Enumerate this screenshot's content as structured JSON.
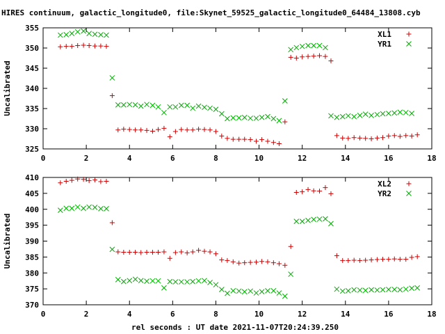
{
  "title": "HIRES continuum, galactic_longitude0, file:Skynet_59525_galactic_longitude0_64484_13808.cyb",
  "xlabel": "rel seconds : UT date 2021-11-07T20:24:39.250",
  "colors": {
    "red": "#cc0000",
    "green": "#00aa00",
    "axis": "#000000"
  },
  "chart_data": [
    {
      "type": "scatter",
      "ylabel": "Uncalibrated",
      "xlim": [
        0,
        18
      ],
      "ylim": [
        325,
        355
      ],
      "xticks": [
        0,
        2,
        4,
        6,
        8,
        10,
        12,
        14,
        16,
        18
      ],
      "yticks": [
        325,
        330,
        335,
        340,
        345,
        350,
        355
      ],
      "legend_position": "top-right",
      "series": [
        {
          "name": "XL1",
          "marker": "plus",
          "color": "#cc0000",
          "x": [
            0.8,
            1.07,
            1.33,
            1.6,
            1.87,
            2.13,
            2.4,
            2.67,
            2.93,
            3.2,
            3.47,
            3.73,
            4.0,
            4.27,
            4.53,
            4.8,
            5.07,
            5.33,
            5.6,
            5.87,
            6.13,
            6.4,
            6.67,
            6.93,
            7.2,
            7.47,
            7.73,
            8.0,
            8.27,
            8.53,
            8.8,
            9.07,
            9.33,
            9.6,
            9.87,
            10.13,
            10.4,
            10.67,
            10.93,
            11.2,
            11.47,
            11.73,
            12.0,
            12.27,
            12.53,
            12.8,
            13.07,
            13.33,
            13.6,
            13.87,
            14.13,
            14.4,
            14.67,
            14.93,
            15.2,
            15.47,
            15.73,
            16.0,
            16.27,
            16.53,
            16.8,
            17.07,
            17.33,
            17.6
          ],
          "y": [
            350.3,
            350.4,
            350.4,
            350.6,
            350.7,
            350.6,
            350.5,
            350.5,
            350.4,
            338.2,
            329.7,
            329.9,
            329.8,
            329.7,
            329.7,
            329.6,
            329.4,
            329.8,
            330.1,
            328.0,
            329.3,
            329.8,
            329.7,
            329.7,
            329.9,
            329.8,
            329.7,
            329.3,
            328.2,
            327.6,
            327.4,
            327.4,
            327.4,
            327.3,
            326.9,
            327.3,
            326.9,
            326.6,
            326.3,
            331.7,
            347.7,
            347.5,
            347.8,
            347.9,
            348.0,
            348.1,
            347.9,
            346.8,
            328.3,
            327.7,
            327.6,
            327.8,
            327.7,
            327.6,
            327.5,
            327.7,
            327.8,
            328.2,
            328.3,
            328.1,
            328.3,
            328.2,
            328.5,
            null
          ]
        },
        {
          "name": "YR1",
          "marker": "cross",
          "color": "#00aa00",
          "x": [
            0.8,
            1.07,
            1.33,
            1.6,
            1.87,
            2.13,
            2.4,
            2.67,
            2.93,
            3.2,
            3.47,
            3.73,
            4.0,
            4.27,
            4.53,
            4.8,
            5.07,
            5.33,
            5.6,
            5.87,
            6.13,
            6.4,
            6.67,
            6.93,
            7.2,
            7.47,
            7.73,
            8.0,
            8.27,
            8.53,
            8.8,
            9.07,
            9.33,
            9.6,
            9.87,
            10.13,
            10.4,
            10.67,
            10.93,
            11.2,
            11.47,
            11.73,
            12.0,
            12.27,
            12.53,
            12.8,
            13.07,
            13.33,
            13.6,
            13.87,
            14.13,
            14.4,
            14.67,
            14.93,
            15.2,
            15.47,
            15.73,
            16.0,
            16.27,
            16.53,
            16.8,
            17.07,
            17.33,
            17.6
          ],
          "y": [
            353.2,
            353.3,
            353.6,
            354.0,
            354.2,
            353.6,
            353.4,
            353.3,
            353.2,
            342.6,
            335.9,
            335.9,
            336.0,
            335.9,
            335.6,
            336.0,
            335.8,
            335.4,
            334.0,
            335.4,
            335.4,
            335.8,
            335.8,
            335.1,
            335.6,
            335.3,
            335.1,
            334.8,
            333.7,
            332.5,
            332.7,
            332.7,
            332.8,
            332.6,
            332.6,
            332.8,
            333.0,
            332.5,
            332.0,
            336.9,
            349.6,
            350.1,
            350.4,
            350.6,
            350.6,
            350.6,
            350.1,
            333.2,
            332.8,
            333.0,
            333.2,
            333.0,
            333.3,
            333.6,
            333.3,
            333.5,
            333.7,
            333.8,
            333.9,
            334.1,
            334.0,
            333.8,
            null,
            null
          ]
        }
      ]
    },
    {
      "type": "scatter",
      "ylabel": "Uncalibrated",
      "xlim": [
        0,
        18
      ],
      "ylim": [
        370,
        410
      ],
      "xticks": [
        0,
        2,
        4,
        6,
        8,
        10,
        12,
        14,
        16,
        18
      ],
      "yticks": [
        370,
        375,
        380,
        385,
        390,
        395,
        400,
        405,
        410
      ],
      "legend_position": "top-right",
      "series": [
        {
          "name": "XL2",
          "marker": "plus",
          "color": "#cc0000",
          "x": [
            0.8,
            1.07,
            1.33,
            1.6,
            1.87,
            2.13,
            2.4,
            2.67,
            2.93,
            3.2,
            3.47,
            3.73,
            4.0,
            4.27,
            4.53,
            4.8,
            5.07,
            5.33,
            5.6,
            5.87,
            6.13,
            6.4,
            6.67,
            6.93,
            7.2,
            7.47,
            7.73,
            8.0,
            8.27,
            8.53,
            8.8,
            9.07,
            9.33,
            9.6,
            9.87,
            10.13,
            10.4,
            10.67,
            10.93,
            11.2,
            11.47,
            11.73,
            12.0,
            12.27,
            12.53,
            12.8,
            13.07,
            13.33,
            13.6,
            13.87,
            14.13,
            14.4,
            14.67,
            14.93,
            15.2,
            15.47,
            15.73,
            16.0,
            16.27,
            16.53,
            16.8,
            17.07,
            17.33,
            17.6
          ],
          "y": [
            408.3,
            408.8,
            409.1,
            409.5,
            409.4,
            409.0,
            409.2,
            408.7,
            408.8,
            395.8,
            386.6,
            386.5,
            386.5,
            386.5,
            386.4,
            386.5,
            386.5,
            386.5,
            386.6,
            384.6,
            386.4,
            386.6,
            386.3,
            386.6,
            387.1,
            386.8,
            386.6,
            386.0,
            384.1,
            383.9,
            383.5,
            383.1,
            383.2,
            383.3,
            383.4,
            383.6,
            383.5,
            383.2,
            382.9,
            382.4,
            388.3,
            405.3,
            405.5,
            406.2,
            405.8,
            405.7,
            406.8,
            404.9,
            385.4,
            383.9,
            383.9,
            384.0,
            383.9,
            384.0,
            384.1,
            384.2,
            384.3,
            384.3,
            384.4,
            384.3,
            384.3,
            384.9,
            385.1,
            null
          ]
        },
        {
          "name": "YR2",
          "marker": "cross",
          "color": "#00aa00",
          "x": [
            0.8,
            1.07,
            1.33,
            1.6,
            1.87,
            2.13,
            2.4,
            2.67,
            2.93,
            3.2,
            3.47,
            3.73,
            4.0,
            4.27,
            4.53,
            4.8,
            5.07,
            5.33,
            5.6,
            5.87,
            6.13,
            6.4,
            6.67,
            6.93,
            7.2,
            7.47,
            7.73,
            8.0,
            8.27,
            8.53,
            8.8,
            9.07,
            9.33,
            9.6,
            9.87,
            10.13,
            10.4,
            10.67,
            10.93,
            11.2,
            11.47,
            11.73,
            12.0,
            12.27,
            12.53,
            12.8,
            13.07,
            13.33,
            13.6,
            13.87,
            14.13,
            14.4,
            14.67,
            14.93,
            15.2,
            15.47,
            15.73,
            16.0,
            16.27,
            16.53,
            16.8,
            17.07,
            17.33,
            17.6
          ],
          "y": [
            399.7,
            400.3,
            400.3,
            400.7,
            400.3,
            400.7,
            400.6,
            400.2,
            400.2,
            387.4,
            377.9,
            377.3,
            377.6,
            378.0,
            377.6,
            377.4,
            377.5,
            377.5,
            375.3,
            377.3,
            377.2,
            377.2,
            377.2,
            377.3,
            377.5,
            377.6,
            377.0,
            376.3,
            374.8,
            373.6,
            374.4,
            374.3,
            374.1,
            374.3,
            373.7,
            374.1,
            374.4,
            374.4,
            373.7,
            372.7,
            379.6,
            396.2,
            396.2,
            396.5,
            396.8,
            396.9,
            397.0,
            395.5,
            374.9,
            374.3,
            374.4,
            374.7,
            374.6,
            374.5,
            374.7,
            374.6,
            374.7,
            374.8,
            374.8,
            374.7,
            374.9,
            375.2,
            375.3,
            null
          ]
        }
      ]
    }
  ]
}
